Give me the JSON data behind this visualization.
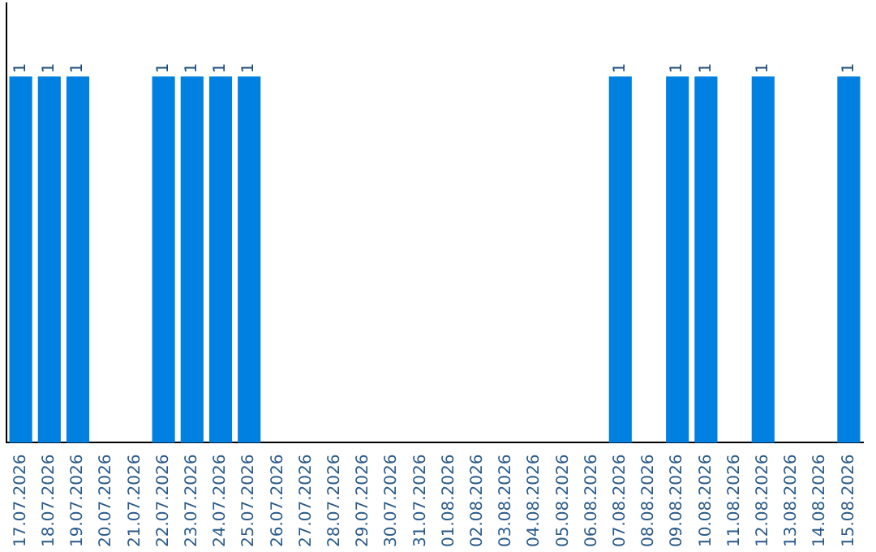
{
  "chart_data": {
    "type": "bar",
    "categories": [
      "17.07.2026",
      "18.07.2026",
      "19.07.2026",
      "20.07.2026",
      "21.07.2026",
      "22.07.2026",
      "23.07.2026",
      "24.07.2026",
      "25.07.2026",
      "26.07.2026",
      "27.07.2026",
      "28.07.2026",
      "29.07.2026",
      "30.07.2026",
      "31.07.2026",
      "01.08.2026",
      "02.08.2026",
      "03.08.2026",
      "04.08.2026",
      "05.08.2026",
      "06.08.2026",
      "07.08.2026",
      "08.08.2026",
      "09.08.2026",
      "10.08.2026",
      "11.08.2026",
      "12.08.2026",
      "13.08.2026",
      "14.08.2026",
      "15.08.2026"
    ],
    "values": [
      1,
      1,
      1,
      0,
      0,
      1,
      1,
      1,
      1,
      0,
      0,
      0,
      0,
      0,
      0,
      0,
      0,
      0,
      0,
      0,
      0,
      1,
      0,
      1,
      1,
      0,
      1,
      0,
      0,
      1
    ],
    "value_labels": [
      "1",
      "1",
      "1",
      null,
      null,
      "1",
      "1",
      "1",
      "1",
      null,
      null,
      null,
      null,
      null,
      null,
      null,
      null,
      null,
      null,
      null,
      null,
      "1",
      null,
      "1",
      "1",
      null,
      "1",
      null,
      null,
      "1"
    ],
    "color": "#0080e0",
    "grid": false,
    "legend": false,
    "tick_labels": "x"
  }
}
